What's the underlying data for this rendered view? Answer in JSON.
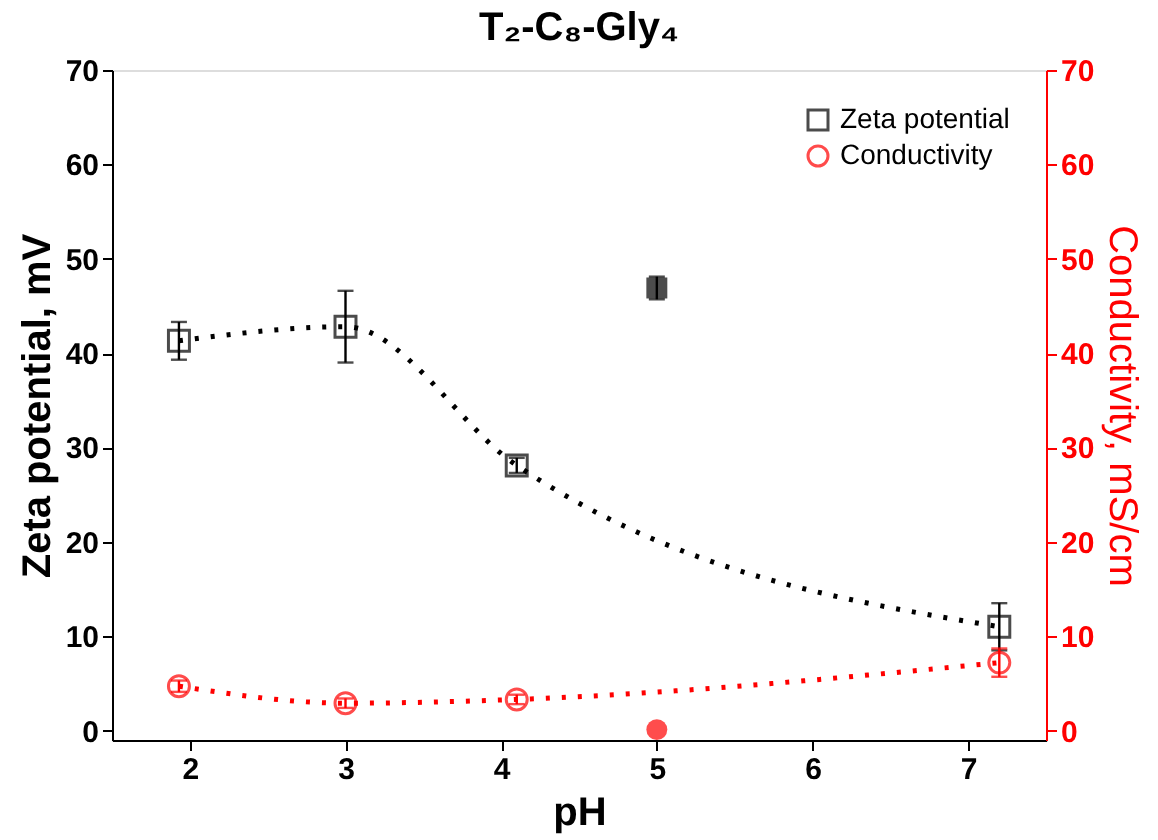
{
  "chart_data": {
    "type": "line",
    "title": "T₂-C₈-Gly₄",
    "xlabel": "pH",
    "ylabel": "Zeta potential, mV",
    "y2label": "Conductivity, mS/cm",
    "xlim": [
      1.5,
      7.5
    ],
    "xticks": [
      2,
      3,
      4,
      5,
      6,
      7
    ],
    "ylim": [
      -1,
      70
    ],
    "yticks": [
      0,
      10,
      20,
      30,
      40,
      50,
      60,
      70
    ],
    "y2lim": [
      -1,
      70
    ],
    "y2ticks": [
      0,
      10,
      20,
      30,
      40,
      50,
      60,
      70
    ],
    "grid": false,
    "legend": "top right",
    "series": [
      {
        "name": "Zeta potential",
        "color": "#000000",
        "marker": "square",
        "line_style": "dotted",
        "x": [
          1.93,
          3,
          4.1,
          7.2
        ],
        "values": [
          41.3,
          42.8,
          28.1,
          11
        ],
        "errors": [
          2,
          3.8,
          0.8,
          2.5
        ]
      },
      {
        "type": "scatter",
        "color": "#000000",
        "marker": "square",
        "x": [
          5
        ],
        "values": [
          46.9
        ],
        "errors": [
          1.2
        ]
      },
      {
        "name": "Conductivity",
        "axis": "y2",
        "color": "#ff0000",
        "marker": "circle",
        "line_style": "dotted",
        "x": [
          1.93,
          3,
          4.1,
          7.2
        ],
        "values": [
          4.7,
          2.9,
          3.3,
          7.2
        ],
        "errors": [
          0.6,
          0.5,
          0.5,
          1.5
        ]
      },
      {
        "type": "scatter",
        "axis": "y2",
        "color": "#ff0000",
        "marker": "circle",
        "x": [
          5
        ],
        "values": [
          0.1
        ]
      }
    ]
  }
}
